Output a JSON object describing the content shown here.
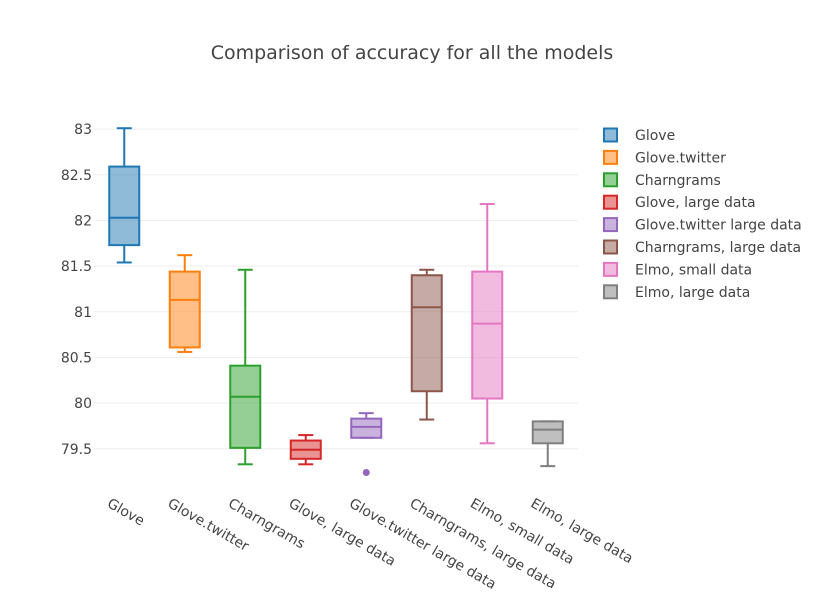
{
  "chart_data": {
    "type": "box",
    "title": "Comparison of accuracy for all the models",
    "xlabel": "",
    "ylabel": "",
    "ylim": [
      79.18,
      83.1
    ],
    "yticks": [
      79.5,
      80,
      80.5,
      81,
      81.5,
      82,
      82.5,
      83
    ],
    "ytick_labels": [
      "79.5",
      "80",
      "80.5",
      "81",
      "81.5",
      "82",
      "82.5",
      "83"
    ],
    "grid": true,
    "legend_position": "top-right",
    "categories": [
      "Glove",
      "Glove.twitter",
      "Charngrams",
      "Glove, large data",
      "Glove.twitter large data",
      "Charngrams, large data",
      "Elmo, small data",
      "Elmo, large data"
    ],
    "series": [
      {
        "name": "Glove",
        "color": "#1f77b4",
        "min": 81.54,
        "q1": 81.73,
        "median": 82.03,
        "q3": 82.59,
        "max": 83.01,
        "outliers": []
      },
      {
        "name": "Glove.twitter",
        "color": "#ff7f0e",
        "min": 80.56,
        "q1": 80.61,
        "median": 81.13,
        "q3": 81.44,
        "max": 81.62,
        "outliers": []
      },
      {
        "name": "Charngrams",
        "color": "#2ca02c",
        "min": 79.33,
        "q1": 79.51,
        "median": 80.07,
        "q3": 80.41,
        "max": 81.46,
        "outliers": []
      },
      {
        "name": "Glove, large data",
        "color": "#d62728",
        "min": 79.33,
        "q1": 79.39,
        "median": 79.49,
        "q3": 79.59,
        "max": 79.65,
        "outliers": []
      },
      {
        "name": "Glove.twitter large data",
        "color": "#9467bd",
        "min": 79.62,
        "q1": 79.62,
        "median": 79.74,
        "q3": 79.83,
        "max": 79.89,
        "outliers": [
          79.24
        ]
      },
      {
        "name": "Charngrams, large data",
        "color": "#8c564b",
        "min": 79.82,
        "q1": 80.13,
        "median": 81.05,
        "q3": 81.4,
        "max": 81.46,
        "outliers": []
      },
      {
        "name": "Elmo, small data",
        "color": "#e377c2",
        "min": 79.56,
        "q1": 80.05,
        "median": 80.87,
        "q3": 81.44,
        "max": 82.18,
        "outliers": []
      },
      {
        "name": "Elmo, large data",
        "color": "#7f7f7f",
        "min": 79.31,
        "q1": 79.56,
        "median": 79.71,
        "q3": 79.8,
        "max": 79.8,
        "outliers": []
      }
    ]
  }
}
